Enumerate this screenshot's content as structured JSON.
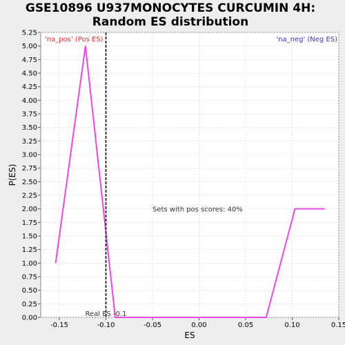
{
  "chart_data": {
    "type": "line",
    "title_lines": [
      "GSE10896 U937MONOCYTES CURCUMIN 4H:",
      "Random ES distribution"
    ],
    "xlabel": "ES",
    "ylabel": "P(ES)",
    "xlim": [
      -0.17,
      0.15
    ],
    "ylim": [
      0,
      5.25
    ],
    "x_ticks": [
      -0.15,
      -0.1,
      -0.05,
      0.0,
      0.05,
      0.1,
      0.15
    ],
    "x_tick_labels": [
      "-0.15",
      "-0.10",
      "-0.05",
      "0.00",
      "0.05",
      "0.10",
      "0.15"
    ],
    "y_ticks": [
      0,
      0.25,
      0.5,
      0.75,
      1.0,
      1.25,
      1.5,
      1.75,
      2.0,
      2.25,
      2.5,
      2.75,
      3.0,
      3.25,
      3.5,
      3.75,
      4.0,
      4.25,
      4.5,
      4.75,
      5.0,
      5.25
    ],
    "y_tick_labels": [
      "0.00",
      "0.25",
      "0.50",
      "0.75",
      "1.00",
      "1.25",
      "1.50",
      "1.75",
      "2.00",
      "2.25",
      "2.50",
      "2.75",
      "3.00",
      "3.25",
      "3.50",
      "3.75",
      "4.00",
      "4.25",
      "4.50",
      "4.75",
      "5.00",
      "5.25"
    ],
    "grid": true,
    "series": [
      {
        "color": "#ee44ee",
        "x": [
          -0.154,
          -0.122,
          -0.09,
          0.072,
          0.103,
          0.135
        ],
        "y": [
          1.0,
          5.0,
          0.0,
          0.0,
          2.0,
          2.0
        ]
      }
    ],
    "real_es": {
      "x": -0.1,
      "label": "Real ES -0.1",
      "color": "#333333"
    },
    "annotations": {
      "pos_label": "'na_pos' (Pos ES)",
      "neg_label": "'na_neg' (Neg ES)",
      "pos_color": "#dd3333",
      "neg_color": "#3333bb",
      "sets_text": "Sets with pos scores: 40%"
    }
  }
}
